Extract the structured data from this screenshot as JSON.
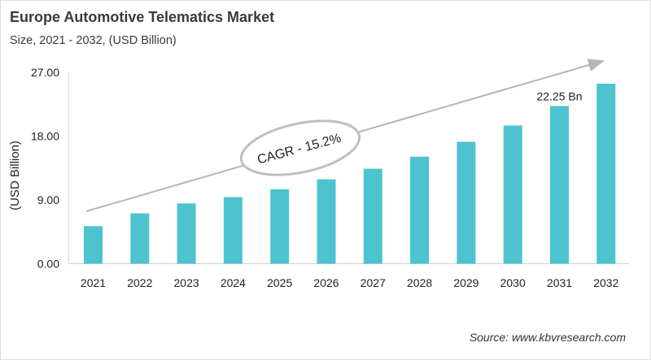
{
  "chart_data": {
    "type": "bar",
    "title": "Europe Automotive Telematics Market",
    "subtitle": "Size, 2021 - 2032, (USD Billion)",
    "xlabel": "",
    "ylabel": "(USD Billion)",
    "ylim": [
      0,
      27
    ],
    "yticks": [
      "0.00",
      "9.00",
      "18.00",
      "27.00"
    ],
    "categories": [
      "2021",
      "2022",
      "2023",
      "2024",
      "2025",
      "2026",
      "2027",
      "2028",
      "2029",
      "2030",
      "2031",
      "2032"
    ],
    "values": [
      5.3,
      7.1,
      8.5,
      9.4,
      10.5,
      11.9,
      13.4,
      15.1,
      17.2,
      19.5,
      22.25,
      25.4
    ],
    "data_labels": [
      {
        "category": "2031",
        "text": "22.25 Bn"
      }
    ],
    "annotation": "CAGR - 15.2%",
    "grid": false,
    "bar_color": "#4dc3cf",
    "source": "Source: www.kbvresearch.com"
  }
}
